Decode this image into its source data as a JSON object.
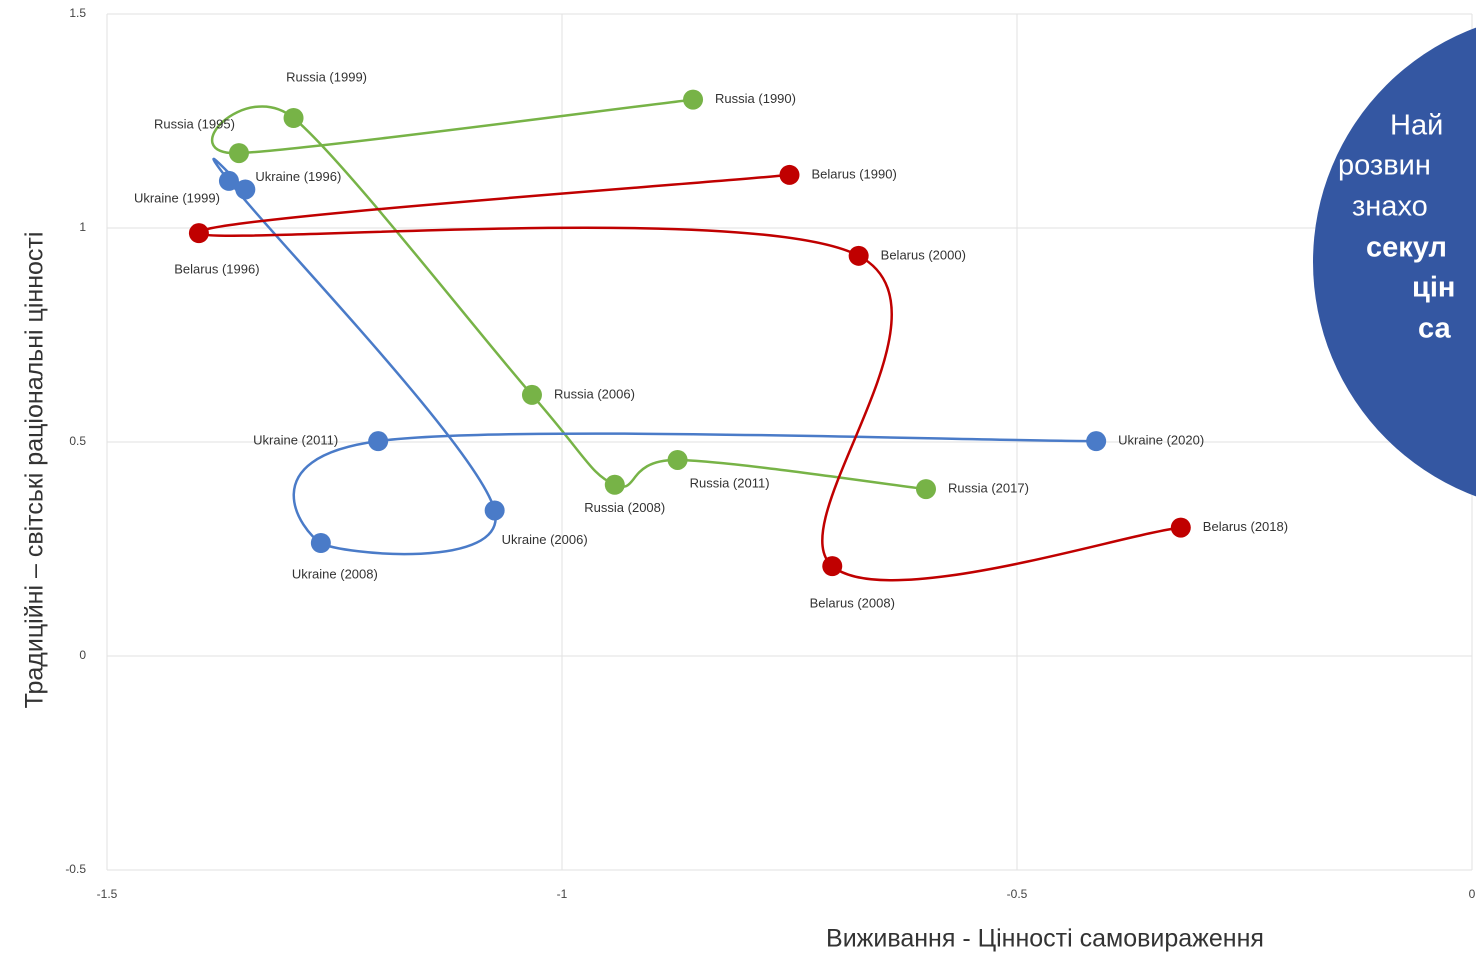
{
  "chart_data": {
    "type": "scatter",
    "xlabel": "Виживання - Цінності самовираження",
    "ylabel": "Традиційні – світські раціональні цінності",
    "xlim": [
      -1.5,
      0
    ],
    "xticks": [
      -1.5,
      -1,
      -0.5,
      0
    ],
    "ylim": [
      -0.5,
      1.5
    ],
    "yticks": [
      -0.5,
      0,
      0.5,
      1,
      1.5
    ],
    "grid": true,
    "connect": "smooth",
    "series": [
      {
        "color": "#77b347",
        "labels": [
          "Russia (1990)",
          "Russia (1995)",
          "Russia (1999)",
          "Russia (2006)",
          "Russia (2008)",
          "Russia (2011)",
          "Russia (2017)"
        ],
        "x": [
          -0.856,
          -1.355,
          -1.295,
          -1.033,
          -0.942,
          -0.873,
          -0.6
        ],
        "values": [
          1.3,
          1.175,
          1.257,
          0.61,
          0.4,
          0.458,
          0.39
        ]
      },
      {
        "color": "#4a7bc8",
        "labels": [
          "Ukraine (1996)",
          "Ukraine (1999)",
          "Ukraine (2006)",
          "Ukraine (2008)",
          "Ukraine (2011)",
          "Ukraine (2020)"
        ],
        "x": [
          -1.348,
          -1.366,
          -1.074,
          -1.265,
          -1.202,
          -0.413
        ],
        "values": [
          1.09,
          1.11,
          0.34,
          0.264,
          0.502,
          0.502
        ]
      },
      {
        "color": "#c00000",
        "labels": [
          "Belarus (1990)",
          "Belarus (1996)",
          "Belarus (2000)",
          "Belarus (2008)",
          "Belarus (2018)"
        ],
        "x": [
          -0.75,
          -1.399,
          -0.674,
          -0.703,
          -0.32
        ],
        "values": [
          1.124,
          0.988,
          0.935,
          0.21,
          0.3
        ]
      }
    ]
  },
  "callout": {
    "lines": [
      "Най",
      "розвин",
      "знахо",
      "секул",
      "цін",
      "са"
    ]
  }
}
